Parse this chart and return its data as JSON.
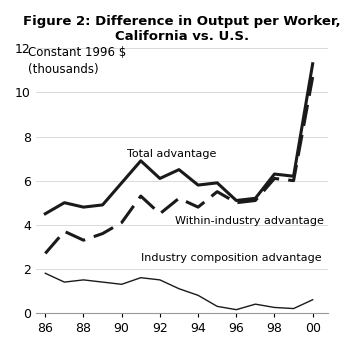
{
  "title_line1": "Figure 2: Difference in Output per Worker,",
  "title_line2": "California vs. U.S.",
  "ylabel_line1": "Constant 1996 $",
  "ylabel_line2": "(thousands)",
  "x_values": [
    1986,
    1987,
    1988,
    1989,
    1990,
    1991,
    1992,
    1993,
    1994,
    1995,
    1996,
    1997,
    1998,
    1999,
    2000
  ],
  "total_advantage": [
    4.5,
    5.0,
    4.8,
    4.9,
    5.9,
    6.9,
    6.1,
    6.5,
    5.8,
    5.9,
    5.1,
    5.2,
    6.3,
    6.2,
    11.3
  ],
  "within_industry": [
    2.7,
    3.7,
    3.3,
    3.6,
    4.1,
    5.3,
    4.5,
    5.2,
    4.8,
    5.5,
    5.0,
    5.1,
    6.1,
    6.0,
    10.7
  ],
  "industry_composition": [
    1.8,
    1.4,
    1.5,
    1.4,
    1.3,
    1.6,
    1.5,
    1.1,
    0.8,
    0.3,
    0.15,
    0.4,
    0.25,
    0.2,
    0.6
  ],
  "ylim": [
    0,
    12
  ],
  "yticks": [
    0,
    2,
    4,
    6,
    8,
    10,
    12
  ],
  "xtick_labels": [
    "86",
    "88",
    "90",
    "92",
    "94",
    "96",
    "98",
    "00"
  ],
  "xtick_values": [
    1986,
    1988,
    1990,
    1992,
    1994,
    1996,
    1998,
    2000
  ],
  "line_color": "#1a1a1a",
  "label_total": "Total advantage",
  "label_within": "Within-industry advantage",
  "label_composition": "Industry composition advantage",
  "xlim": [
    1985.5,
    2000.8
  ]
}
